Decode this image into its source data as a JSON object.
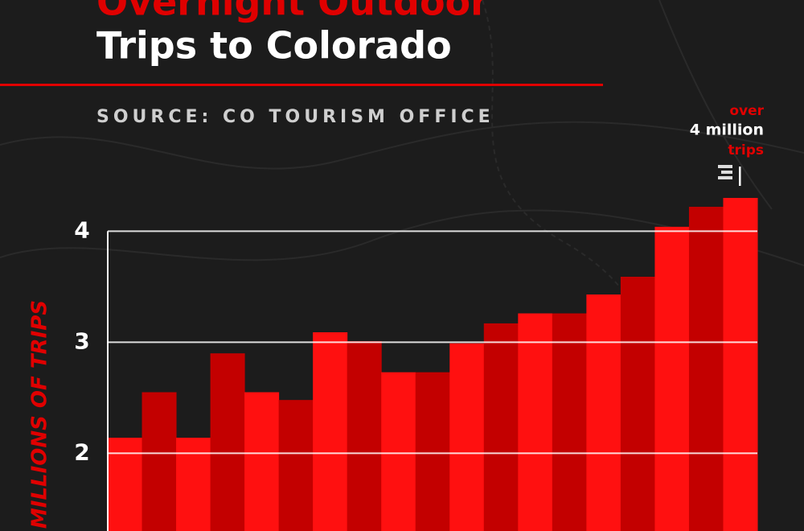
{
  "chart_data": {
    "type": "bar",
    "title": "Overnight Outdoor",
    "subtitle": "Trips to Colorado",
    "source": "SOURCE: CO TOURISM OFFICE",
    "y_label": "MILLIONS OF TRIPS",
    "annotations": [
      "over",
      "4 million",
      "trips"
    ],
    "categories": [
      null,
      null,
      null,
      null,
      null,
      null,
      null,
      null,
      null,
      null,
      null,
      null,
      null,
      null,
      null,
      null,
      null,
      null,
      null
    ],
    "values": [
      2.14,
      2.55,
      2.14,
      2.9,
      2.55,
      2.48,
      3.09,
      3.01,
      2.73,
      2.73,
      2.99,
      3.17,
      3.26,
      3.26,
      3.43,
      3.59,
      4.04,
      4.22,
      4.3
    ],
    "colors": [
      "#ff1010",
      "#c30000"
    ],
    "ylim": [
      1.3,
      4.5
    ],
    "yticks": [
      2,
      3,
      4
    ],
    "grid": true
  }
}
